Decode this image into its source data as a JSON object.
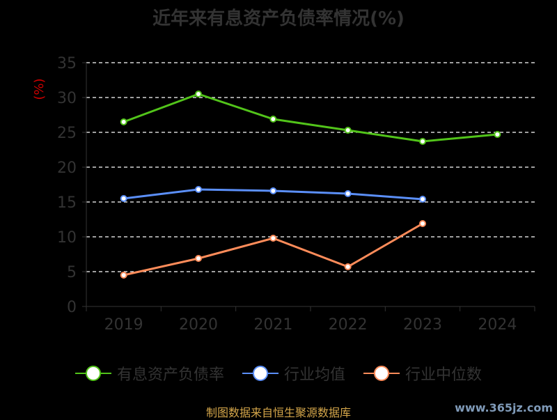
{
  "chart_data": {
    "type": "line",
    "title": "近年来有息资产负债率情况(%)",
    "ylabel": "(%)",
    "categories": [
      "2019",
      "2020",
      "2021",
      "2022",
      "2023",
      "2024"
    ],
    "ylim": [
      0,
      35
    ],
    "yticks": [
      0,
      5,
      10,
      15,
      20,
      25,
      30,
      35
    ],
    "grid": true,
    "legend_position": "bottom",
    "series": [
      {
        "name": "有息资产负债率",
        "color": "#52c41a",
        "values": [
          26.5,
          30.5,
          26.9,
          25.3,
          23.7,
          24.7
        ]
      },
      {
        "name": "行业均值",
        "color": "#5b8ff9",
        "values": [
          15.5,
          16.8,
          16.6,
          16.2,
          15.4,
          null
        ]
      },
      {
        "name": "行业中位数",
        "color": "#ff8c5a",
        "values": [
          4.5,
          6.9,
          9.8,
          5.7,
          11.9,
          null
        ]
      }
    ]
  },
  "source_text": "制图数据来自恒生聚源数据库",
  "watermark": "www.365jz.com",
  "colors": {
    "background": "#000000",
    "axis": "#333333",
    "grid": "#ffffff",
    "ylabel": "#cc0000",
    "source": "#d4a64a"
  }
}
